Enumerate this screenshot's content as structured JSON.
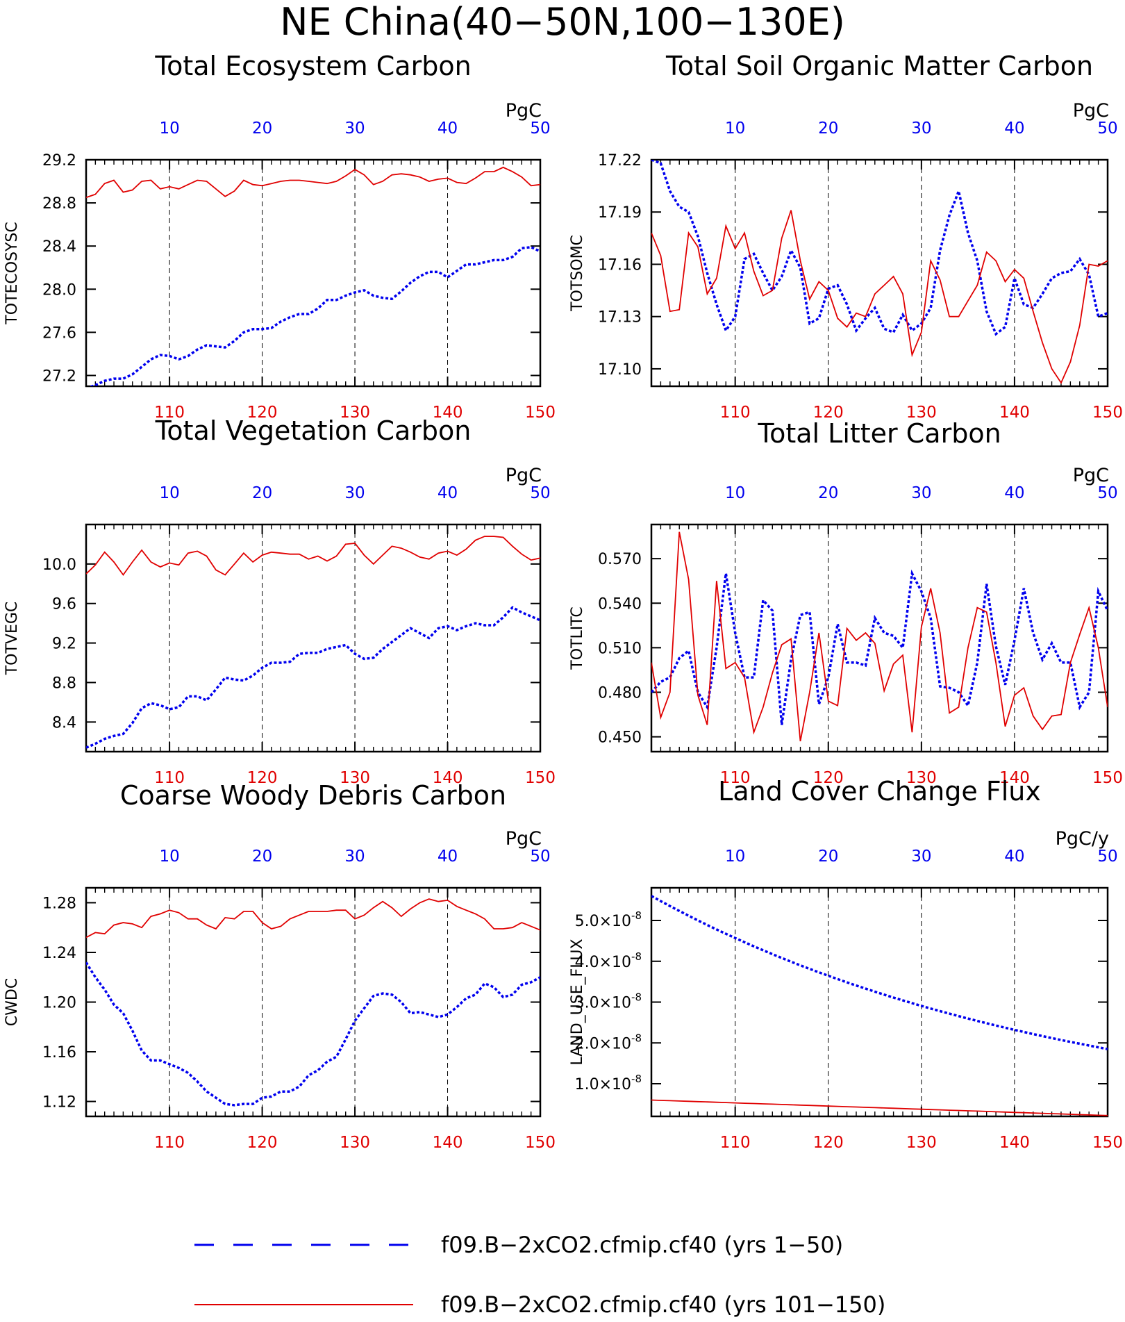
{
  "page": {
    "title": "NE China(40−50N,100−130E)"
  },
  "colors": {
    "series_1_50": "#0000ee",
    "series_101_150": "#e00000",
    "grid": "#000000"
  },
  "legend": {
    "items": [
      {
        "label": "f09.B−2xCO2.cfmip.cf40 (yrs 1−50)",
        "style": "dashed-blue"
      },
      {
        "label": "f09.B−2xCO2.cfmip.cf40 (yrs 101−150)",
        "style": "solid-red"
      }
    ]
  },
  "chart_data": [
    {
      "type": "line",
      "title": "Total Ecosystem Carbon",
      "ylabel": "TOTECOSYSC",
      "unit": "PgC",
      "top_axis": {
        "range": [
          1,
          50
        ],
        "ticks": [
          10,
          20,
          30,
          40,
          50
        ],
        "tick_labels": [
          "10",
          "20",
          "30",
          "40",
          "50"
        ]
      },
      "bottom_axis": {
        "range": [
          101,
          150
        ],
        "ticks": [
          110,
          120,
          130,
          140,
          150
        ],
        "tick_labels": [
          "110",
          "120",
          "130",
          "140",
          "150"
        ]
      },
      "ylim": [
        27.1,
        29.2
      ],
      "y_ticks": [
        29.2,
        28.8,
        28.4,
        28.0,
        27.6,
        27.2
      ],
      "y_tick_labels": [
        "29.2",
        "28.8",
        "28.4",
        "28.0",
        "27.6",
        "27.2"
      ],
      "series": [
        {
          "style": "dashed-blue",
          "values": [
            27.08,
            27.11,
            27.15,
            27.17,
            27.17,
            27.21,
            27.28,
            27.35,
            27.39,
            27.38,
            27.35,
            27.38,
            27.44,
            27.48,
            27.47,
            27.46,
            27.52,
            27.6,
            27.63,
            27.63,
            27.64,
            27.7,
            27.74,
            27.77,
            27.77,
            27.82,
            27.9,
            27.9,
            27.94,
            27.97,
            27.99,
            27.94,
            27.92,
            27.91,
            27.98,
            28.06,
            28.12,
            28.16,
            28.16,
            28.11,
            28.17,
            28.23,
            28.23,
            28.25,
            28.27,
            28.27,
            28.3,
            28.38,
            28.39,
            28.35
          ]
        },
        {
          "style": "solid-red",
          "values": [
            28.85,
            28.88,
            28.98,
            29.01,
            28.9,
            28.92,
            29.0,
            29.01,
            28.93,
            28.95,
            28.93,
            28.97,
            29.01,
            29.0,
            28.93,
            28.86,
            28.91,
            29.01,
            28.97,
            28.96,
            28.98,
            29.0,
            29.01,
            29.01,
            29.0,
            28.99,
            28.98,
            29.0,
            29.05,
            29.11,
            29.06,
            28.97,
            29.0,
            29.06,
            29.07,
            29.06,
            29.04,
            29.0,
            29.02,
            29.03,
            28.99,
            28.98,
            29.03,
            29.09,
            29.09,
            29.13,
            29.09,
            29.04,
            28.96,
            28.97
          ]
        }
      ]
    },
    {
      "type": "line",
      "title": "Total Soil Organic Matter Carbon",
      "ylabel": "TOTSOMC",
      "unit": "PgC",
      "top_axis": {
        "range": [
          1,
          50
        ],
        "ticks": [
          10,
          20,
          30,
          40,
          50
        ],
        "tick_labels": [
          "10",
          "20",
          "30",
          "40",
          "50"
        ]
      },
      "bottom_axis": {
        "range": [
          101,
          150
        ],
        "ticks": [
          110,
          120,
          130,
          140,
          150
        ],
        "tick_labels": [
          "110",
          "120",
          "130",
          "140",
          "150"
        ]
      },
      "ylim": [
        17.09,
        17.22
      ],
      "y_ticks": [
        17.22,
        17.19,
        17.16,
        17.13,
        17.1
      ],
      "y_tick_labels": [
        "17.22",
        "17.19",
        "17.16",
        "17.13",
        "17.10"
      ],
      "series": [
        {
          "style": "dashed-blue",
          "values": [
            17.22,
            17.218,
            17.202,
            17.193,
            17.19,
            17.176,
            17.155,
            17.137,
            17.122,
            17.13,
            17.163,
            17.166,
            17.155,
            17.145,
            17.153,
            17.168,
            17.158,
            17.126,
            17.129,
            17.146,
            17.148,
            17.137,
            17.122,
            17.129,
            17.135,
            17.123,
            17.121,
            17.131,
            17.122,
            17.126,
            17.135,
            17.168,
            17.188,
            17.202,
            17.178,
            17.162,
            17.133,
            17.12,
            17.124,
            17.152,
            17.137,
            17.135,
            17.143,
            17.152,
            17.155,
            17.156,
            17.163,
            17.154,
            17.13,
            17.132
          ]
        },
        {
          "style": "solid-red",
          "values": [
            17.178,
            17.165,
            17.133,
            17.134,
            17.178,
            17.17,
            17.143,
            17.152,
            17.182,
            17.169,
            17.178,
            17.156,
            17.142,
            17.145,
            17.175,
            17.191,
            17.162,
            17.14,
            17.15,
            17.145,
            17.129,
            17.124,
            17.132,
            17.13,
            17.143,
            17.148,
            17.153,
            17.143,
            17.108,
            17.121,
            17.162,
            17.151,
            17.13,
            17.13,
            17.139,
            17.148,
            17.167,
            17.162,
            17.15,
            17.157,
            17.152,
            17.133,
            17.115,
            17.1,
            17.092,
            17.104,
            17.125,
            17.16,
            17.159,
            17.162
          ]
        }
      ]
    },
    {
      "type": "line",
      "title": "Total Vegetation Carbon",
      "ylabel": "TOTVEGC",
      "unit": "PgC",
      "top_axis": {
        "range": [
          1,
          50
        ],
        "ticks": [
          10,
          20,
          30,
          40,
          50
        ],
        "tick_labels": [
          "10",
          "20",
          "30",
          "40",
          "50"
        ]
      },
      "bottom_axis": {
        "range": [
          101,
          150
        ],
        "ticks": [
          110,
          120,
          130,
          140,
          150
        ],
        "tick_labels": [
          "110",
          "120",
          "130",
          "140",
          "150"
        ]
      },
      "ylim": [
        8.1,
        10.4
      ],
      "y_ticks": [
        10.0,
        9.6,
        9.2,
        8.8,
        8.4
      ],
      "y_tick_labels": [
        "10.0",
        "9.6",
        "9.2",
        "8.8",
        "8.4"
      ],
      "series": [
        {
          "style": "dashed-blue",
          "values": [
            8.14,
            8.18,
            8.23,
            8.26,
            8.28,
            8.39,
            8.54,
            8.59,
            8.57,
            8.53,
            8.55,
            8.66,
            8.66,
            8.62,
            8.73,
            8.85,
            8.83,
            8.82,
            8.87,
            8.95,
            9.0,
            9.0,
            9.01,
            9.09,
            9.1,
            9.1,
            9.14,
            9.16,
            9.18,
            9.09,
            9.04,
            9.05,
            9.14,
            9.21,
            9.28,
            9.35,
            9.3,
            9.25,
            9.35,
            9.37,
            9.33,
            9.37,
            9.4,
            9.38,
            9.38,
            9.46,
            9.56,
            9.51,
            9.47,
            9.43
          ]
        },
        {
          "style": "solid-red",
          "values": [
            9.9,
            9.99,
            10.12,
            10.02,
            9.89,
            10.02,
            10.14,
            10.02,
            9.97,
            10.01,
            9.99,
            10.11,
            10.13,
            10.08,
            9.94,
            9.89,
            10.0,
            10.11,
            10.02,
            10.09,
            10.12,
            10.11,
            10.1,
            10.1,
            10.05,
            10.08,
            10.03,
            10.08,
            10.2,
            10.21,
            10.09,
            10.0,
            10.09,
            10.18,
            10.16,
            10.12,
            10.07,
            10.05,
            10.11,
            10.13,
            10.09,
            10.15,
            10.24,
            10.28,
            10.28,
            10.27,
            10.18,
            10.1,
            10.04,
            10.06
          ]
        }
      ]
    },
    {
      "type": "line",
      "title": "Total Litter Carbon",
      "ylabel": "TOTLITC",
      "unit": "PgC",
      "top_axis": {
        "range": [
          1,
          50
        ],
        "ticks": [
          10,
          20,
          30,
          40,
          50
        ],
        "tick_labels": [
          "10",
          "20",
          "30",
          "40",
          "50"
        ]
      },
      "bottom_axis": {
        "range": [
          101,
          150
        ],
        "ticks": [
          110,
          120,
          130,
          140,
          150
        ],
        "tick_labels": [
          "110",
          "120",
          "130",
          "140",
          "150"
        ]
      },
      "ylim": [
        0.44,
        0.593
      ],
      "y_ticks": [
        0.57,
        0.54,
        0.51,
        0.48,
        0.45
      ],
      "y_tick_labels": [
        "0.570",
        "0.540",
        "0.510",
        "0.480",
        "0.450"
      ],
      "series": [
        {
          "style": "dashed-blue",
          "values": [
            0.48,
            0.487,
            0.49,
            0.503,
            0.508,
            0.48,
            0.47,
            0.51,
            0.56,
            0.52,
            0.49,
            0.49,
            0.542,
            0.535,
            0.458,
            0.502,
            0.532,
            0.534,
            0.472,
            0.49,
            0.526,
            0.5,
            0.5,
            0.498,
            0.53,
            0.52,
            0.518,
            0.51,
            0.56,
            0.548,
            0.53,
            0.484,
            0.483,
            0.48,
            0.471,
            0.5,
            0.553,
            0.511,
            0.485,
            0.515,
            0.55,
            0.52,
            0.502,
            0.513,
            0.5,
            0.5,
            0.47,
            0.48,
            0.548,
            0.535
          ]
        },
        {
          "style": "solid-red",
          "values": [
            0.5,
            0.463,
            0.48,
            0.588,
            0.556,
            0.478,
            0.458,
            0.555,
            0.496,
            0.5,
            0.49,
            0.453,
            0.47,
            0.493,
            0.512,
            0.516,
            0.447,
            0.48,
            0.52,
            0.474,
            0.471,
            0.523,
            0.515,
            0.52,
            0.513,
            0.481,
            0.499,
            0.505,
            0.453,
            0.524,
            0.55,
            0.52,
            0.466,
            0.47,
            0.51,
            0.537,
            0.534,
            0.5,
            0.457,
            0.478,
            0.483,
            0.464,
            0.455,
            0.464,
            0.465,
            0.5,
            0.519,
            0.537,
            0.51,
            0.47
          ]
        }
      ]
    },
    {
      "type": "line",
      "title": "Coarse Woody Debris Carbon",
      "ylabel": "CWDC",
      "unit": "PgC",
      "top_axis": {
        "range": [
          1,
          50
        ],
        "ticks": [
          10,
          20,
          30,
          40,
          50
        ],
        "tick_labels": [
          "10",
          "20",
          "30",
          "40",
          "50"
        ]
      },
      "bottom_axis": {
        "range": [
          101,
          150
        ],
        "ticks": [
          110,
          120,
          130,
          140,
          150
        ],
        "tick_labels": [
          "110",
          "120",
          "130",
          "140",
          "150"
        ]
      },
      "ylim": [
        1.108,
        1.292
      ],
      "y_ticks": [
        1.28,
        1.24,
        1.2,
        1.16,
        1.12
      ],
      "y_tick_labels": [
        "1.28",
        "1.24",
        "1.20",
        "1.16",
        "1.12"
      ],
      "series": [
        {
          "style": "dashed-blue",
          "values": [
            1.232,
            1.22,
            1.21,
            1.198,
            1.191,
            1.177,
            1.161,
            1.153,
            1.153,
            1.15,
            1.147,
            1.143,
            1.136,
            1.128,
            1.123,
            1.118,
            1.117,
            1.118,
            1.118,
            1.123,
            1.124,
            1.128,
            1.128,
            1.132,
            1.141,
            1.145,
            1.152,
            1.156,
            1.17,
            1.185,
            1.195,
            1.205,
            1.207,
            1.206,
            1.2,
            1.191,
            1.192,
            1.19,
            1.188,
            1.19,
            1.196,
            1.203,
            1.206,
            1.215,
            1.212,
            1.204,
            1.206,
            1.214,
            1.216,
            1.22
          ]
        },
        {
          "style": "solid-red",
          "values": [
            1.252,
            1.256,
            1.255,
            1.262,
            1.264,
            1.263,
            1.26,
            1.269,
            1.271,
            1.274,
            1.272,
            1.267,
            1.267,
            1.262,
            1.259,
            1.268,
            1.267,
            1.273,
            1.273,
            1.264,
            1.259,
            1.261,
            1.267,
            1.27,
            1.273,
            1.273,
            1.273,
            1.274,
            1.274,
            1.267,
            1.27,
            1.276,
            1.281,
            1.276,
            1.269,
            1.275,
            1.28,
            1.283,
            1.281,
            1.282,
            1.277,
            1.274,
            1.271,
            1.267,
            1.259,
            1.259,
            1.26,
            1.264,
            1.261,
            1.258
          ]
        }
      ]
    },
    {
      "type": "line",
      "title": "Land Cover Change Flux",
      "ylabel": "LAND_USE_FLUX",
      "unit": "PgC/y",
      "top_axis": {
        "range": [
          1,
          50
        ],
        "ticks": [
          10,
          20,
          30,
          40,
          50
        ],
        "tick_labels": [
          "10",
          "20",
          "30",
          "40",
          "50"
        ]
      },
      "bottom_axis": {
        "range": [
          101,
          150
        ],
        "ticks": [
          110,
          120,
          130,
          140,
          150
        ],
        "tick_labels": [
          "110",
          "120",
          "130",
          "140",
          "150"
        ]
      },
      "ylim": [
        2e-09,
        5.8e-08
      ],
      "y_ticks": [
        5e-08,
        4e-08,
        3e-08,
        2e-08,
        1e-08
      ],
      "y_tick_labels": [
        {
          "mantissa": "5.0",
          "exponent": "-8"
        },
        {
          "mantissa": "4.0",
          "exponent": "-8"
        },
        {
          "mantissa": "3.0",
          "exponent": "-8"
        },
        {
          "mantissa": "2.0",
          "exponent": "-8"
        },
        {
          "mantissa": "1.0",
          "exponent": "-8"
        }
      ],
      "series": [
        {
          "style": "dashed-blue",
          "start": 5.6e-08,
          "end": 1.85e-08,
          "decay": "exponential"
        },
        {
          "style": "solid-red",
          "start": 6e-09,
          "end": 2.2e-09,
          "decay": "linear"
        }
      ]
    }
  ]
}
